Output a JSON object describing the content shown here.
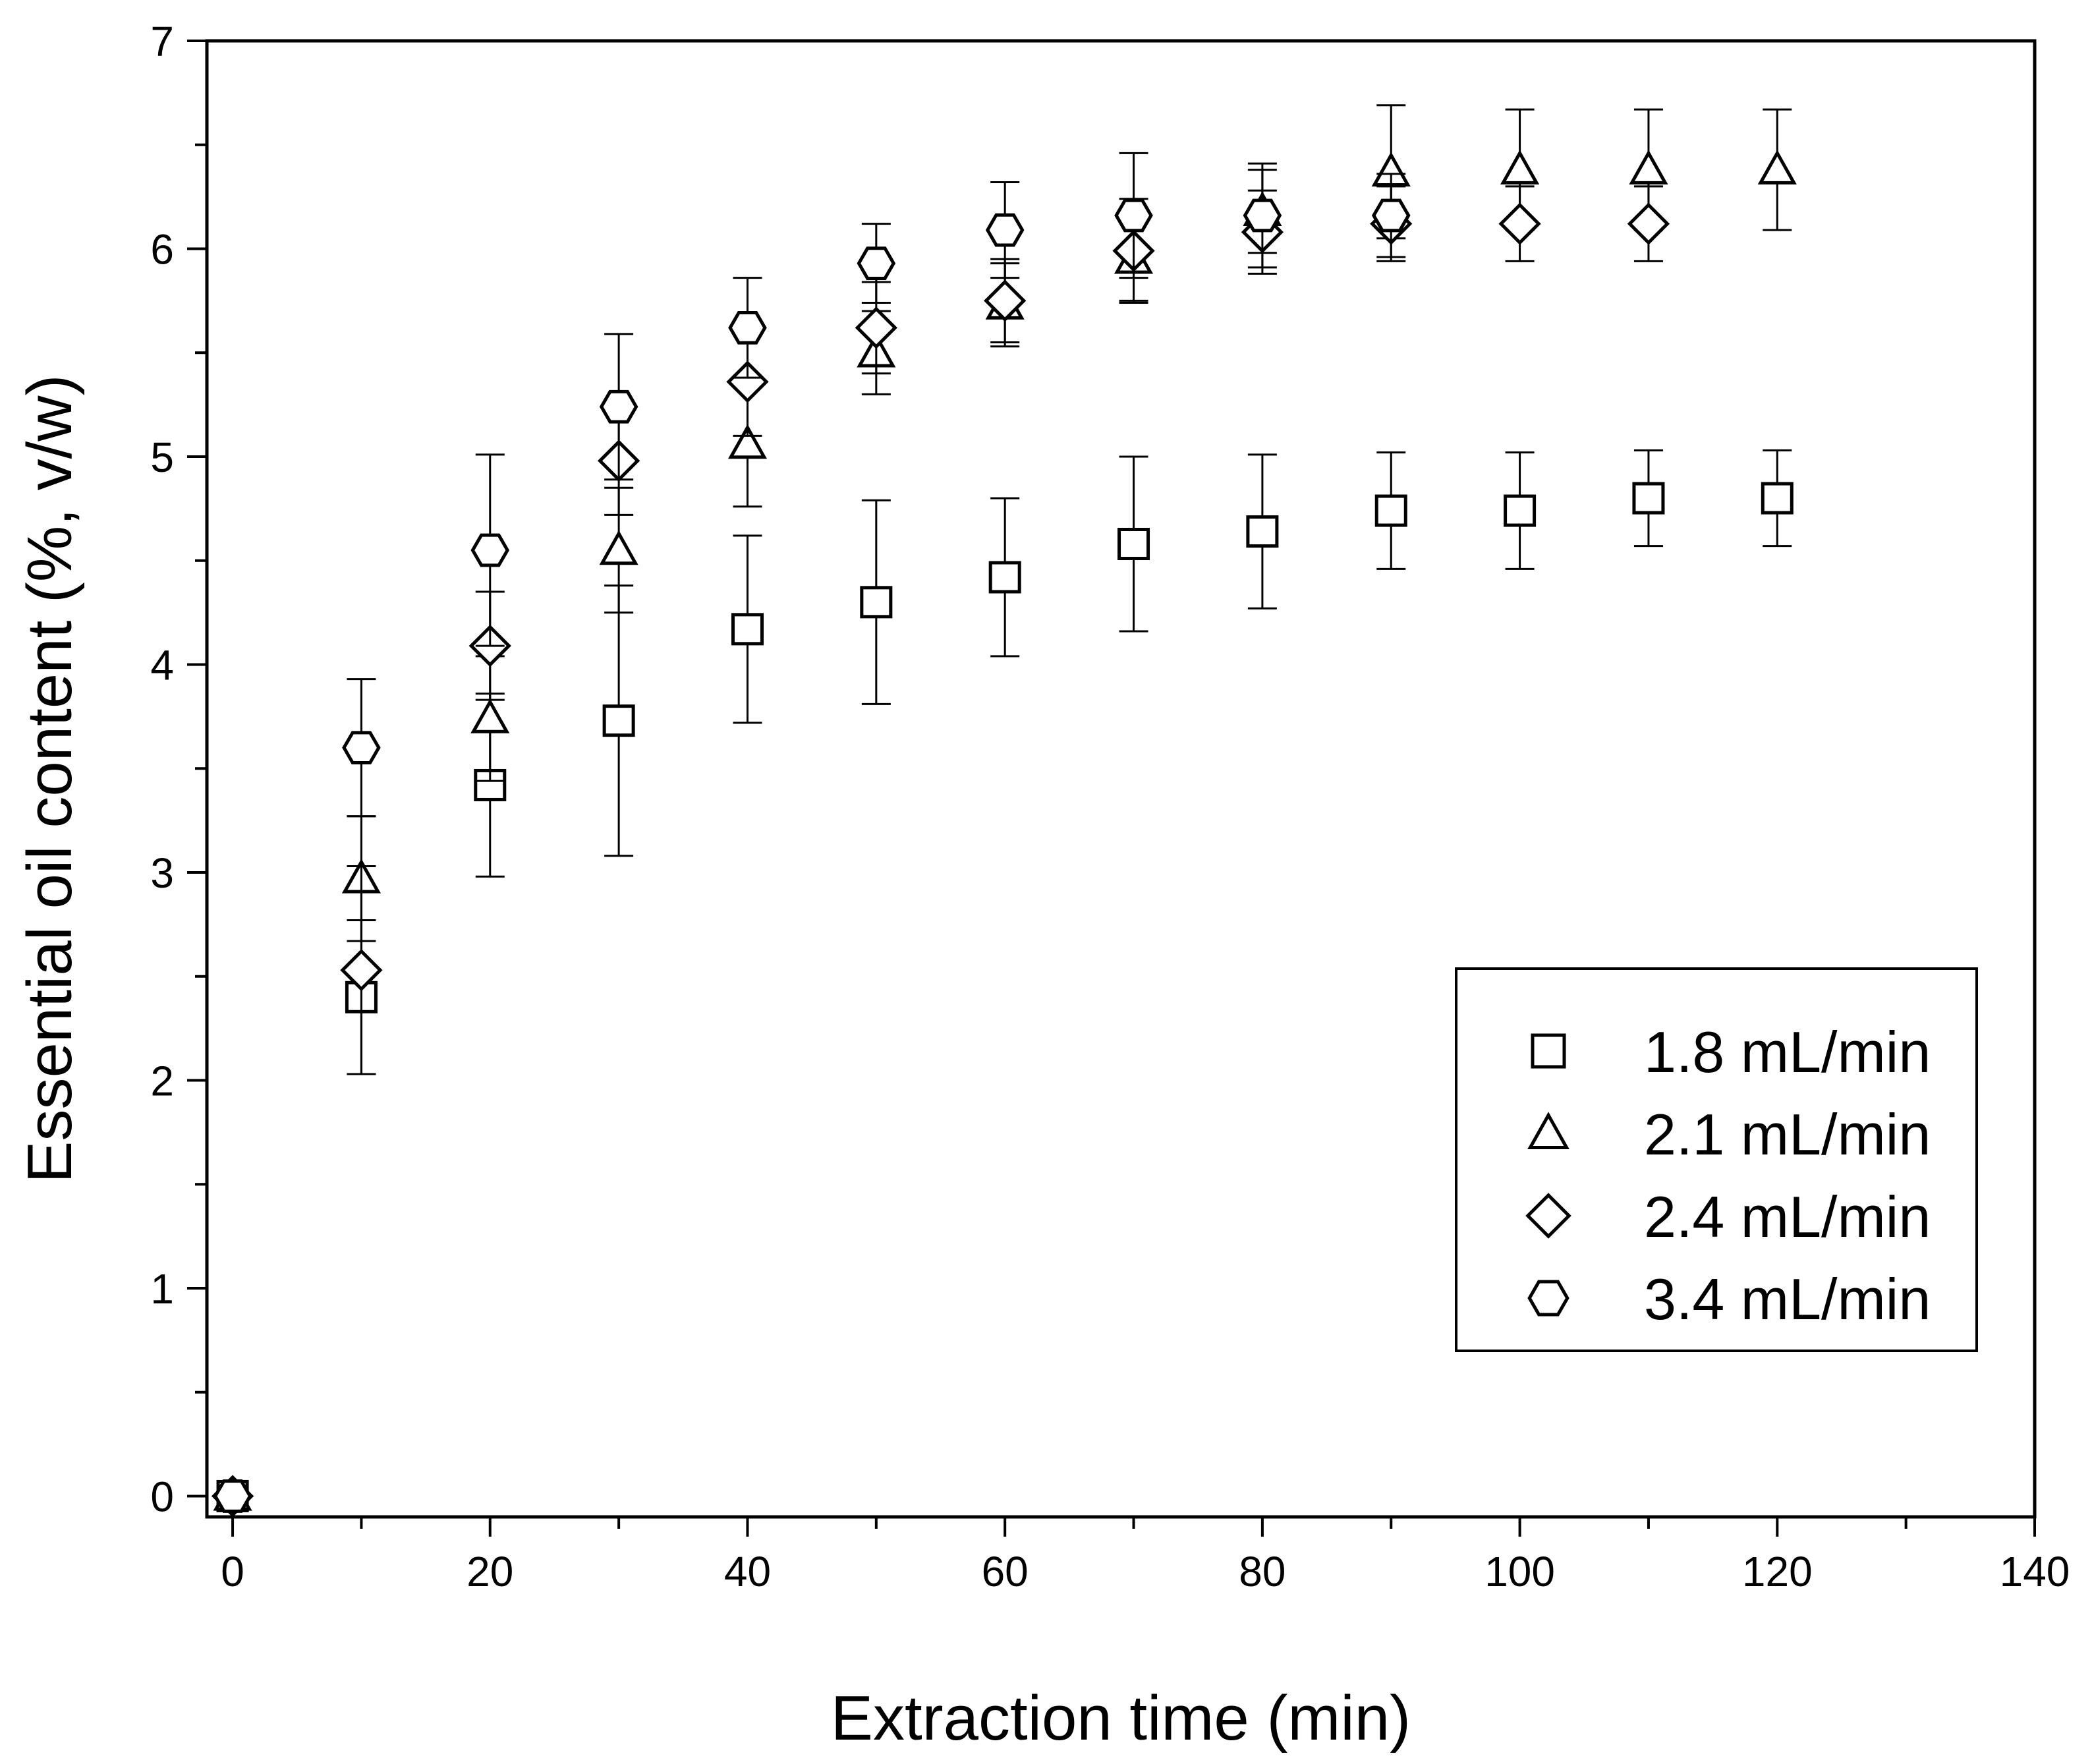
{
  "chart_data": {
    "type": "scatter",
    "title": "",
    "xlabel": "Extraction time (min)",
    "ylabel": "Essential oil content (%, v/w)",
    "xlim": [
      -2,
      140
    ],
    "ylim": [
      -0.1,
      7
    ],
    "xticks": [
      0,
      20,
      40,
      60,
      80,
      100,
      120,
      140
    ],
    "yticks": [
      0,
      1,
      2,
      3,
      4,
      5,
      6,
      7
    ],
    "grid": false,
    "legend_position": "bottom-right",
    "series": [
      {
        "name": "1.8 mL/min",
        "marker": "square",
        "x": [
          0,
          10,
          20,
          30,
          40,
          50,
          60,
          70,
          80,
          90,
          100,
          110,
          120
        ],
        "y": [
          0,
          2.4,
          3.42,
          3.73,
          4.17,
          4.3,
          4.42,
          4.58,
          4.64,
          4.74,
          4.74,
          4.8,
          4.8
        ],
        "err": [
          0,
          0.37,
          0.44,
          0.65,
          0.45,
          0.49,
          0.38,
          0.42,
          0.37,
          0.28,
          0.28,
          0.23,
          0.23
        ]
      },
      {
        "name": "2.1 mL/min",
        "marker": "triangle",
        "x": [
          0,
          10,
          20,
          30,
          40,
          50,
          60,
          70,
          80,
          90,
          100,
          110,
          120
        ],
        "y": [
          0,
          2.97,
          3.74,
          4.55,
          5.06,
          5.5,
          5.73,
          5.95,
          6.18,
          6.37,
          6.38,
          6.38,
          6.38
        ],
        "err": [
          0,
          0.3,
          0.3,
          0.3,
          0.3,
          0.2,
          0.2,
          0.2,
          0.2,
          0.32,
          0.29,
          0.29,
          0.29
        ]
      },
      {
        "name": "2.4 mL/min",
        "marker": "diamond",
        "x": [
          0,
          10,
          20,
          30,
          40,
          50,
          60,
          70,
          80,
          90,
          100,
          110
        ],
        "y": [
          0,
          2.53,
          4.09,
          4.98,
          5.36,
          5.62,
          5.75,
          5.99,
          6.08,
          6.12,
          6.12,
          6.12
        ],
        "err": [
          0,
          0.5,
          0.26,
          0.26,
          0.26,
          0.22,
          0.2,
          0.25,
          0.2,
          0.18,
          0.18,
          0.18
        ]
      },
      {
        "name": "3.4 mL/min",
        "marker": "hexagon",
        "x": [
          0,
          10,
          20,
          30,
          40,
          50,
          60,
          70,
          80,
          90
        ],
        "y": [
          0,
          3.6,
          4.55,
          5.24,
          5.62,
          5.93,
          6.09,
          6.16,
          6.16,
          6.16
        ],
        "err": [
          0,
          0.33,
          0.46,
          0.35,
          0.24,
          0.19,
          0.23,
          0.3,
          0.25,
          0.2
        ]
      }
    ]
  }
}
